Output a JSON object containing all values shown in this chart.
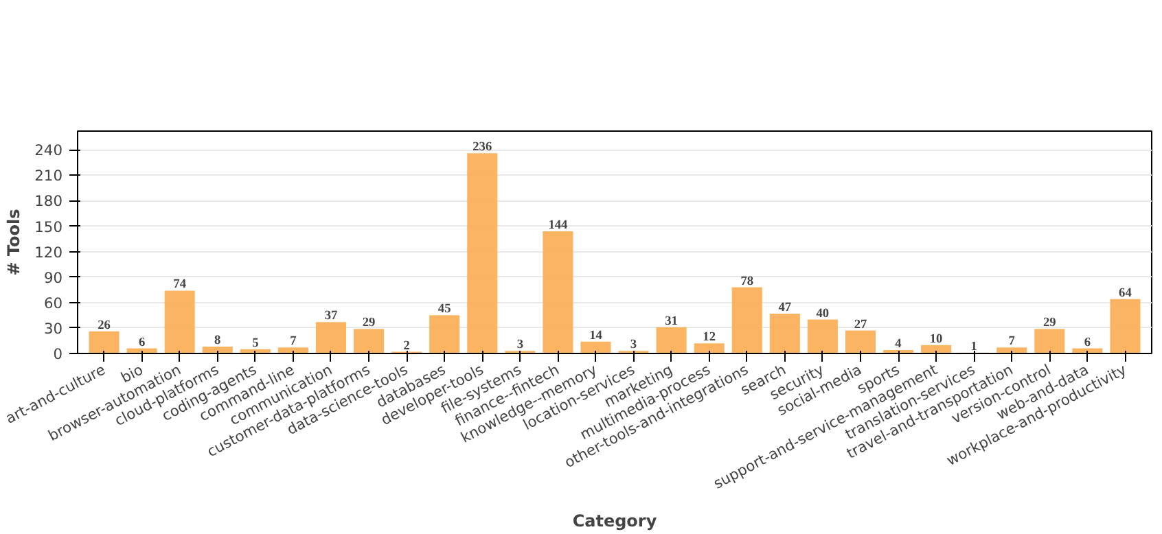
{
  "chart_data": {
    "type": "bar",
    "xlabel": "Category",
    "ylabel": "# Tools",
    "categories": [
      "art-and-culture",
      "bio",
      "browser-automation",
      "cloud-platforms",
      "coding-agents",
      "command-line",
      "communication",
      "customer-data-platforms",
      "data-science-tools",
      "databases",
      "developer-tools",
      "file-systems",
      "finance--fintech",
      "knowledge--memory",
      "location-services",
      "marketing",
      "multimedia-process",
      "other-tools-and-integrations",
      "search",
      "security",
      "social-media",
      "sports",
      "support-and-service-management",
      "translation-services",
      "travel-and-transportation",
      "version-control",
      "web-and-data",
      "workplace-and-productivity"
    ],
    "values": [
      26,
      6,
      74,
      8,
      5,
      7,
      37,
      29,
      2,
      45,
      236,
      3,
      144,
      14,
      3,
      31,
      12,
      78,
      47,
      40,
      27,
      4,
      10,
      1,
      7,
      29,
      6,
      64
    ],
    "color": "#fbb05a",
    "ylim": [
      0,
      262
    ],
    "yticks": [
      0,
      30,
      60,
      90,
      120,
      150,
      180,
      210,
      240
    ],
    "grid": "y",
    "data_labels": true
  }
}
